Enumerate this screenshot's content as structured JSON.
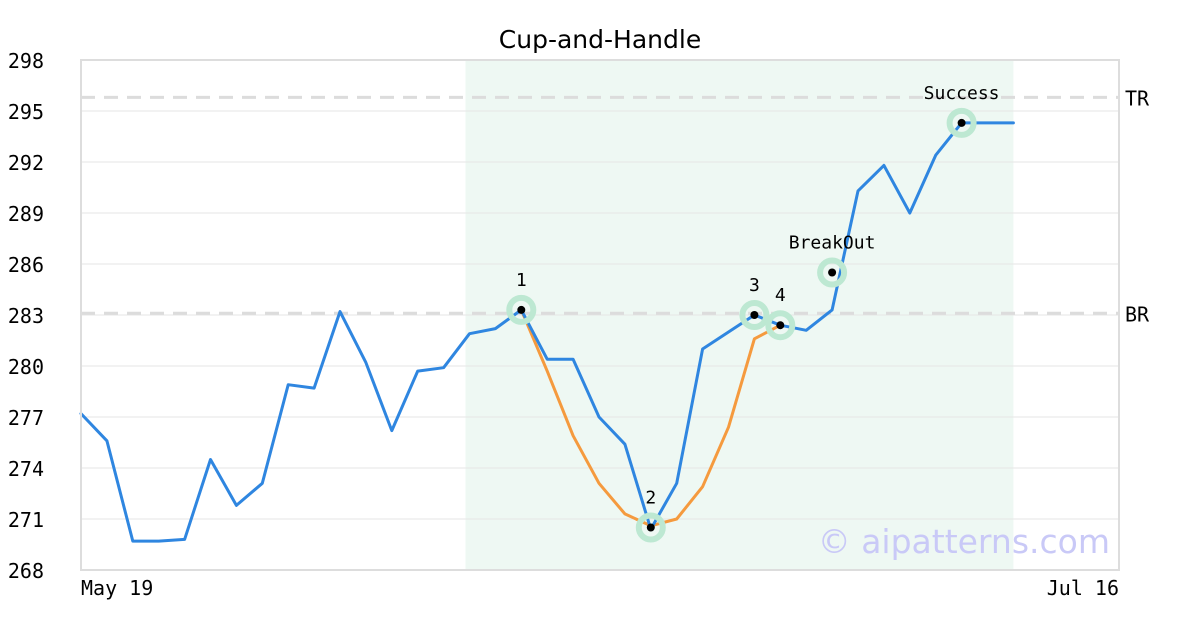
{
  "chart_data": {
    "type": "line",
    "title": "Cup-and-Handle",
    "xlabel": "",
    "ylabel": "",
    "x_tick_labels": [
      "May 19",
      "Jul 16"
    ],
    "ylim": [
      268,
      298
    ],
    "y_ticks": [
      268,
      271,
      274,
      277,
      280,
      283,
      286,
      289,
      292,
      295,
      298
    ],
    "grid": "horizontal",
    "series": [
      {
        "color": "#2f86e0",
        "values": [
          277.2,
          275.6,
          269.7,
          269.7,
          269.8,
          274.5,
          271.8,
          273.1,
          278.9,
          278.7,
          283.2,
          280.2,
          276.2,
          279.7,
          279.9,
          281.9,
          282.2,
          283.3,
          280.4,
          280.4,
          277.0,
          275.4,
          270.4,
          273.1,
          281.0,
          282.0,
          283.0,
          282.4,
          282.1,
          283.3,
          290.3,
          291.8,
          289.0,
          292.4,
          294.3,
          294.3,
          294.3
        ]
      },
      {
        "color": "#f59a3e",
        "start_index": 17,
        "values": [
          283.3,
          279.7,
          275.9,
          273.1,
          271.3,
          270.6,
          271.0,
          272.9,
          276.4,
          281.6,
          282.4
        ]
      }
    ],
    "reference_lines": [
      {
        "label": "TR",
        "value": 295.8
      },
      {
        "label": "BR",
        "value": 283.1
      }
    ],
    "shaded_region": {
      "start_index": 15,
      "end_index": 36,
      "color": "#eef8f3"
    },
    "annotations": [
      {
        "label": "1",
        "index": 17,
        "value": 283.3
      },
      {
        "label": "2",
        "index": 22,
        "value": 270.5
      },
      {
        "label": "3",
        "index": 26,
        "value": 283.0
      },
      {
        "label": "4",
        "index": 27,
        "value": 282.4
      },
      {
        "label": "BreakOut",
        "index": 29,
        "value": 285.5
      },
      {
        "label": "Success",
        "index": 34,
        "value": 294.3
      }
    ],
    "watermark": "© aipatterns.com",
    "colors": {
      "grid": "#e6e6e6",
      "axis": "#dddddd",
      "reference": "#dcdcdc",
      "marker_halo": "#bde8d2",
      "watermark": "#c9c9f7"
    }
  }
}
